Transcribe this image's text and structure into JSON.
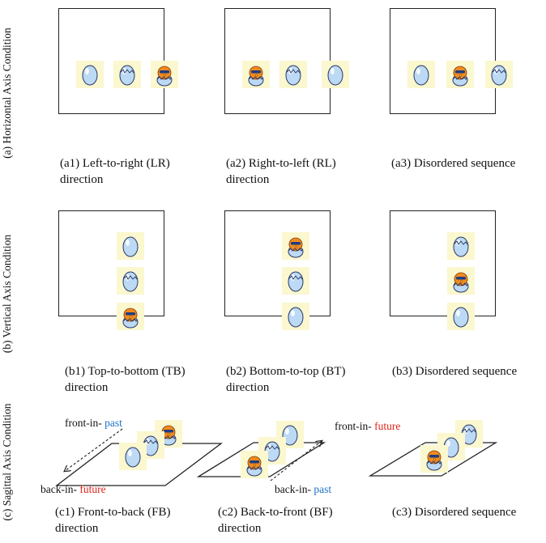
{
  "rows": [
    {
      "label": "(a) Horizontal Axis Condition",
      "panels": [
        {
          "caption_line1": "(a1) Left-to-right (LR)",
          "caption_line2": "direction",
          "sequence": [
            "whole-egg",
            "cracked-egg",
            "hatched-chick"
          ]
        },
        {
          "caption_line1": "(a2) Right-to-left (RL)",
          "caption_line2": "direction",
          "sequence": [
            "hatched-chick",
            "cracked-egg",
            "whole-egg"
          ]
        },
        {
          "caption_line1": "(a3) Disordered sequence",
          "caption_line2": "",
          "sequence": [
            "whole-egg",
            "hatched-chick",
            "cracked-egg"
          ]
        }
      ]
    },
    {
      "label": "(b) Vertical Axis Condition",
      "panels": [
        {
          "caption_line1": "(b1) Top-to-bottom (TB)",
          "caption_line2": "direction",
          "sequence": [
            "whole-egg",
            "cracked-egg",
            "hatched-chick"
          ]
        },
        {
          "caption_line1": "(b2) Bottom-to-top (BT)",
          "caption_line2": "direction",
          "sequence": [
            "hatched-chick",
            "cracked-egg",
            "whole-egg"
          ]
        },
        {
          "caption_line1": "(b3) Disordered sequence",
          "caption_line2": "",
          "sequence": [
            "cracked-egg",
            "hatched-chick",
            "whole-egg"
          ]
        }
      ]
    },
    {
      "label": "(c) Sagittal Axis Condition",
      "panels": [
        {
          "caption_line1": "(c1) Front-to-back (FB)",
          "caption_line2": "direction",
          "sequence": [
            "whole-egg",
            "cracked-egg",
            "hatched-chick"
          ]
        },
        {
          "caption_line1": "(c2) Back-to-front (BF)",
          "caption_line2": "direction",
          "sequence": [
            "hatched-chick",
            "cracked-egg",
            "whole-egg"
          ]
        },
        {
          "caption_line1": "(c3) Disordered sequence",
          "caption_line2": "",
          "sequence": [
            "hatched-chick",
            "whole-egg",
            "cracked-egg"
          ]
        }
      ]
    }
  ],
  "sagittal_labels": {
    "c1_front_prefix": "front-in-",
    "c1_front_word": "past",
    "c1_back_prefix": "back-in-",
    "c1_back_word": "future",
    "c2_front_prefix": "front-in-",
    "c2_front_word": "future",
    "c2_back_prefix": "back-in-",
    "c2_back_word": "past"
  },
  "colors": {
    "tile_background": "#fbf7cf",
    "egg_fill": "#bcd9f5",
    "egg_outline": "#2a3a66",
    "chick_body": "#f08a1f",
    "past": "#1f73c7",
    "future": "#e0241b"
  }
}
